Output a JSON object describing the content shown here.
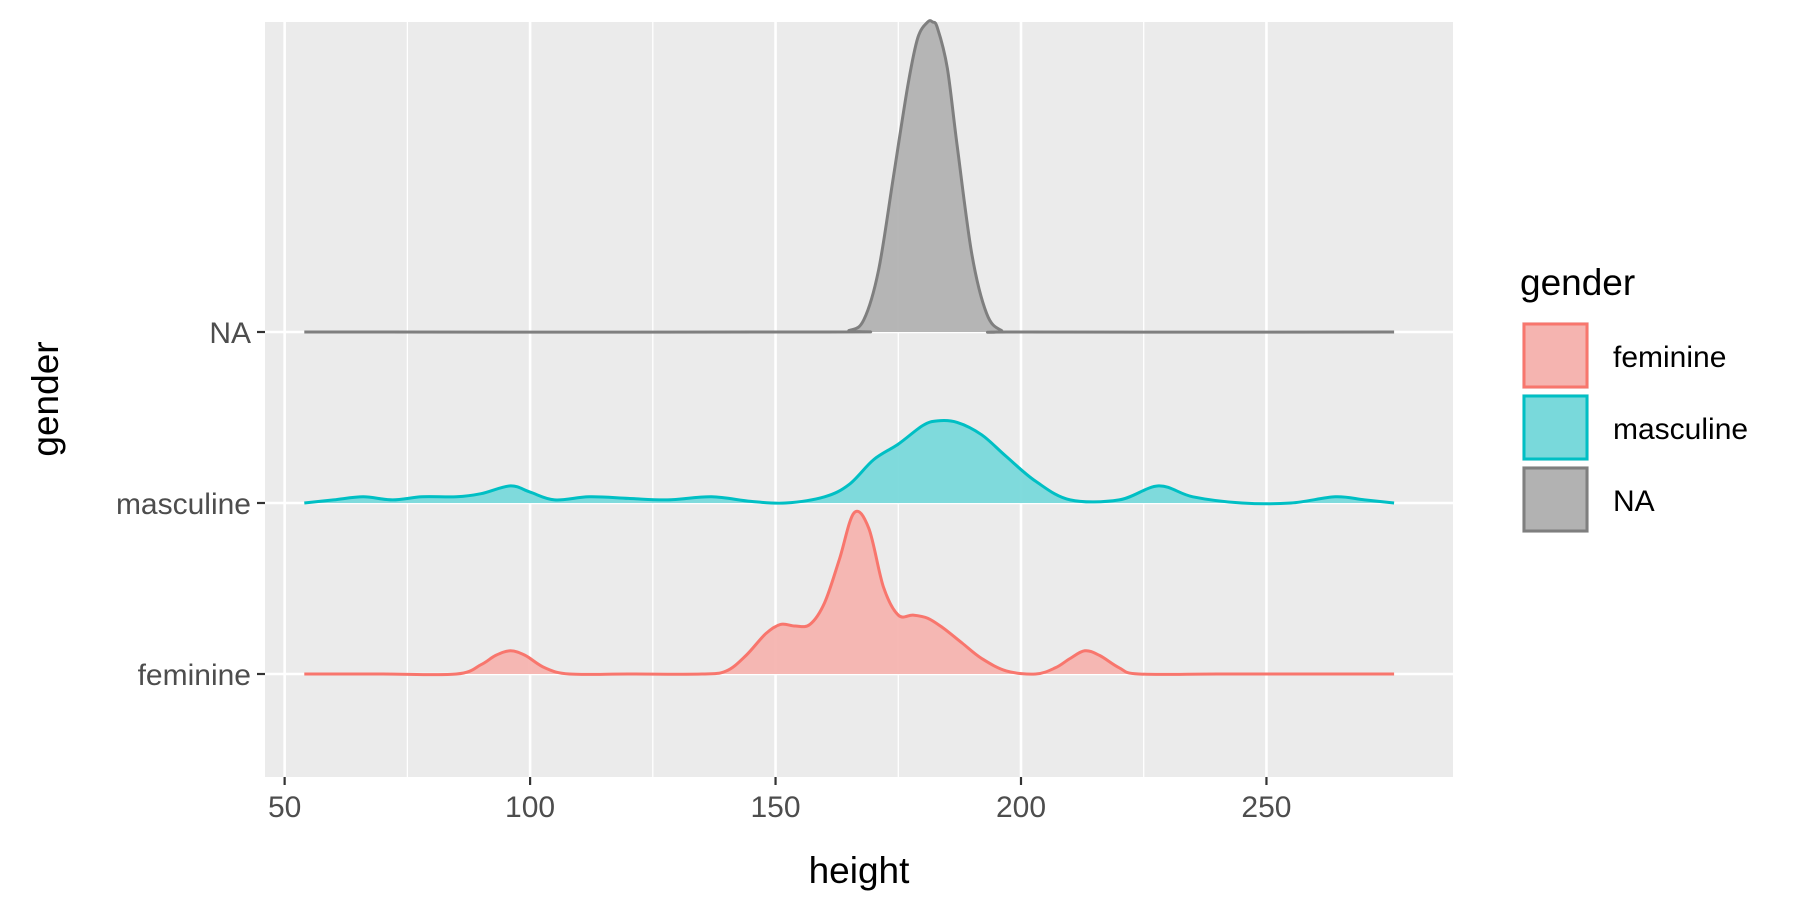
{
  "chart_data": {
    "type": "area",
    "subtype": "ridgeline",
    "title": "",
    "xlabel": "height",
    "ylabel": "gender",
    "xlim": [
      46,
      288
    ],
    "x_ticks": [
      50,
      100,
      150,
      200,
      250
    ],
    "x_tick_labels": [
      "50",
      "100",
      "150",
      "200",
      "250"
    ],
    "categories": [
      "feminine",
      "masculine",
      "NA"
    ],
    "grid": true,
    "legend": {
      "title": "gender",
      "position": "right",
      "entries": [
        "feminine",
        "masculine",
        "NA"
      ]
    },
    "colors": {
      "feminine": "#F8766D",
      "masculine": "#00BFC4",
      "NA": "#7F7F7F",
      "panel": "#EBEBEB",
      "grid": "#FFFFFF"
    },
    "fill_colors": {
      "feminine": "#F5B4B0",
      "masculine": "#79D9DB",
      "NA": "#B2B2B2"
    },
    "relative_scale": "peak height as fraction of the tallest ridge (NA)",
    "series": [
      {
        "name": "feminine",
        "x": [
          54,
          70,
          85,
          90,
          93,
          96,
          99,
          103,
          108,
          120,
          135,
          140,
          144,
          148,
          151,
          154,
          157,
          160,
          163,
          166,
          169,
          172,
          175,
          178,
          181,
          184,
          188,
          192,
          197,
          203,
          207,
          210,
          213,
          216,
          220,
          224,
          240,
          260,
          276
        ],
        "values": [
          0,
          0,
          0,
          0.03,
          0.06,
          0.075,
          0.06,
          0.02,
          0,
          0,
          0,
          0.01,
          0.06,
          0.13,
          0.16,
          0.155,
          0.16,
          0.23,
          0.37,
          0.52,
          0.47,
          0.28,
          0.19,
          0.19,
          0.18,
          0.15,
          0.1,
          0.05,
          0.01,
          0,
          0.02,
          0.05,
          0.075,
          0.06,
          0.02,
          0,
          0,
          0,
          0
        ]
      },
      {
        "name": "masculine",
        "x": [
          54,
          60,
          66,
          72,
          78,
          85,
          90,
          96,
          100,
          105,
          112,
          120,
          128,
          137,
          145,
          152,
          160,
          165,
          170,
          175,
          180,
          183,
          187,
          192,
          197,
          203,
          210,
          220,
          228,
          235,
          245,
          255,
          264,
          270,
          276
        ],
        "values": [
          0,
          0.01,
          0.02,
          0.01,
          0.02,
          0.02,
          0.03,
          0.055,
          0.035,
          0.01,
          0.02,
          0.015,
          0.01,
          0.02,
          0.005,
          0,
          0.02,
          0.06,
          0.14,
          0.19,
          0.25,
          0.265,
          0.26,
          0.22,
          0.15,
          0.07,
          0.01,
          0.01,
          0.055,
          0.02,
          0,
          0,
          0.02,
          0.01,
          0
        ]
      },
      {
        "name": "NA",
        "x": [
          54,
          160,
          165,
          168,
          171,
          174,
          177,
          179,
          181,
          182,
          183,
          185,
          187,
          190,
          193,
          196,
          200,
          276
        ],
        "values": [
          0,
          0,
          0.005,
          0.04,
          0.2,
          0.5,
          0.8,
          0.95,
          1.0,
          1.0,
          0.98,
          0.85,
          0.6,
          0.25,
          0.06,
          0.005,
          0,
          0
        ]
      }
    ]
  }
}
